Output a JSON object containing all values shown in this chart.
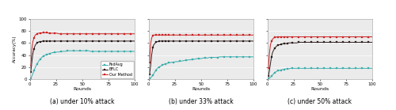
{
  "rounds": [
    1,
    2,
    3,
    4,
    5,
    6,
    7,
    8,
    9,
    10,
    11,
    12,
    13,
    14,
    15,
    16,
    17,
    18,
    19,
    20,
    22,
    24,
    26,
    28,
    30,
    32,
    34,
    36,
    38,
    40,
    42,
    44,
    46,
    48,
    50,
    52,
    54,
    56,
    58,
    60,
    62,
    64,
    66,
    68,
    70,
    72,
    74,
    76,
    78,
    80,
    82,
    84,
    86,
    88,
    90,
    92,
    94,
    96,
    98,
    100
  ],
  "panel_a": {
    "fedavg": [
      2,
      5,
      9,
      14,
      18,
      22,
      25,
      28,
      31,
      33,
      35,
      37,
      38,
      39,
      40,
      41,
      41,
      42,
      42,
      43,
      44,
      44,
      45,
      45,
      46,
      46,
      46,
      47,
      47,
      47,
      47,
      47,
      47,
      47,
      47,
      47,
      47,
      47,
      46,
      46,
      46,
      46,
      46,
      46,
      46,
      46,
      46,
      46,
      46,
      46,
      46,
      46,
      46,
      46,
      46,
      46,
      46,
      46,
      46,
      46
    ],
    "bflc": [
      12,
      28,
      42,
      50,
      55,
      58,
      60,
      61,
      62,
      62,
      62,
      63,
      63,
      63,
      63,
      63,
      63,
      63,
      63,
      63,
      63,
      63,
      63,
      63,
      63,
      63,
      63,
      63,
      63,
      63,
      63,
      63,
      63,
      63,
      63,
      63,
      63,
      63,
      63,
      63,
      63,
      63,
      63,
      63,
      63,
      63,
      63,
      63,
      63,
      63,
      63,
      63,
      63,
      63,
      63,
      63,
      63,
      63,
      63,
      63
    ],
    "ourmethod": [
      22,
      50,
      62,
      68,
      72,
      74,
      75,
      76,
      76,
      76,
      76,
      77,
      77,
      77,
      77,
      77,
      77,
      76,
      76,
      76,
      76,
      76,
      76,
      75,
      75,
      75,
      75,
      75,
      75,
      75,
      75,
      75,
      75,
      75,
      75,
      75,
      75,
      75,
      75,
      75,
      75,
      75,
      75,
      75,
      75,
      75,
      75,
      75,
      75,
      75,
      75,
      75,
      75,
      75,
      75,
      75,
      75,
      75,
      75,
      75
    ]
  },
  "panel_b": {
    "fedavg": [
      1,
      2,
      4,
      6,
      9,
      12,
      15,
      17,
      19,
      20,
      21,
      22,
      23,
      24,
      25,
      25,
      26,
      26,
      27,
      27,
      28,
      28,
      29,
      29,
      30,
      30,
      31,
      31,
      32,
      32,
      33,
      33,
      34,
      34,
      34,
      35,
      35,
      35,
      36,
      36,
      36,
      36,
      36,
      37,
      37,
      37,
      37,
      37,
      37,
      37,
      37,
      37,
      37,
      37,
      37,
      37,
      37,
      37,
      37,
      37
    ],
    "bflc": [
      8,
      22,
      40,
      52,
      57,
      59,
      61,
      62,
      62,
      63,
      63,
      63,
      63,
      63,
      63,
      63,
      63,
      63,
      63,
      63,
      63,
      63,
      63,
      63,
      63,
      63,
      63,
      63,
      63,
      63,
      63,
      63,
      63,
      63,
      63,
      63,
      63,
      63,
      63,
      63,
      63,
      63,
      63,
      63,
      63,
      63,
      63,
      63,
      63,
      63,
      63,
      63,
      63,
      63,
      63,
      63,
      63,
      63,
      63,
      63
    ],
    "ourmethod": [
      28,
      58,
      68,
      72,
      73,
      73,
      73,
      73,
      73,
      73,
      73,
      73,
      73,
      73,
      73,
      73,
      73,
      73,
      73,
      73,
      73,
      73,
      73,
      73,
      73,
      73,
      73,
      73,
      73,
      73,
      73,
      73,
      73,
      73,
      73,
      73,
      73,
      73,
      73,
      73,
      73,
      73,
      73,
      73,
      73,
      73,
      73,
      73,
      73,
      73,
      73,
      73,
      73,
      73,
      73,
      73,
      73,
      73,
      73,
      73
    ]
  },
  "panel_c": {
    "fedavg": [
      1,
      2,
      3,
      5,
      7,
      9,
      11,
      12,
      13,
      14,
      14,
      15,
      15,
      16,
      16,
      16,
      17,
      17,
      17,
      17,
      18,
      18,
      18,
      18,
      18,
      18,
      18,
      18,
      18,
      18,
      18,
      18,
      18,
      18,
      18,
      18,
      18,
      18,
      18,
      18,
      18,
      18,
      18,
      18,
      18,
      18,
      18,
      18,
      18,
      18,
      18,
      18,
      18,
      18,
      18,
      18,
      18,
      18,
      18,
      18
    ],
    "bflc": [
      5,
      14,
      26,
      37,
      44,
      48,
      51,
      53,
      55,
      56,
      57,
      57,
      58,
      58,
      59,
      59,
      59,
      59,
      59,
      60,
      60,
      60,
      60,
      60,
      61,
      61,
      61,
      61,
      61,
      61,
      61,
      61,
      61,
      61,
      61,
      61,
      61,
      61,
      61,
      61,
      61,
      61,
      61,
      61,
      61,
      61,
      61,
      61,
      61,
      61,
      61,
      61,
      61,
      61,
      61,
      61,
      61,
      61,
      61,
      61
    ],
    "ourmethod": [
      18,
      42,
      57,
      63,
      66,
      68,
      69,
      69,
      70,
      70,
      70,
      70,
      70,
      70,
      70,
      70,
      70,
      70,
      70,
      70,
      70,
      70,
      70,
      70,
      70,
      70,
      70,
      70,
      70,
      70,
      70,
      70,
      70,
      70,
      70,
      70,
      70,
      70,
      70,
      70,
      70,
      70,
      70,
      70,
      70,
      70,
      70,
      70,
      70,
      70,
      70,
      70,
      70,
      70,
      70,
      70,
      70,
      70,
      70,
      70
    ]
  },
  "colors": {
    "fedavg": "#3aacac",
    "bflc": "#2a1a1a",
    "ourmethod": "#cc2020"
  },
  "ylim": [
    0,
    100
  ],
  "xlim": [
    0,
    100
  ],
  "xticks": [
    0,
    25,
    50,
    75,
    100
  ],
  "yticks": [
    0,
    20,
    40,
    60,
    80,
    100
  ],
  "xlabel": "Rounds",
  "ylabel": "Accuracy(%)",
  "subtitles": [
    "(a) under 10% attack",
    "(b) under 33% attack",
    "(c) under 50% attack"
  ],
  "legend_labels": [
    "FedAvg",
    "BFLC",
    "Our Method"
  ],
  "marker": "s",
  "markersize": 1.5,
  "linewidth": 0.7,
  "bg_color": "#ebebeb"
}
